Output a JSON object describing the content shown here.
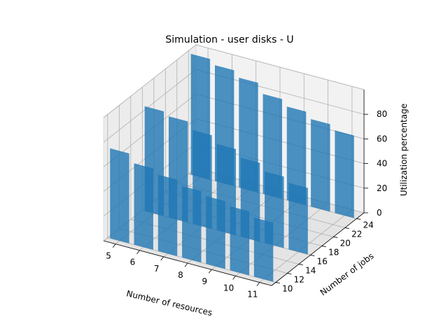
{
  "chart_data": {
    "type": "bar3d",
    "title": "Simulation - user disks - U",
    "xlabel": "Number of resources",
    "ylabel": "Number of jobs",
    "zlabel": "Utilization percentage",
    "x_ticks": [
      "5",
      "6",
      "7",
      "8",
      "9",
      "10",
      "11"
    ],
    "y_ticks": [
      "10",
      "12",
      "14",
      "16",
      "18",
      "20",
      "22",
      "24"
    ],
    "z_ticks": [
      "0",
      "20",
      "40",
      "60",
      "80"
    ],
    "xlim": [
      4.5,
      11.5
    ],
    "ylim": [
      9.3,
      25.3
    ],
    "zlim": [
      0,
      100
    ],
    "grid": true,
    "bars": [
      {
        "x": 5,
        "y": 10,
        "z": 73
      },
      {
        "x": 6,
        "y": 10,
        "z": 66
      },
      {
        "x": 7,
        "y": 10,
        "z": 62
      },
      {
        "x": 8,
        "y": 10,
        "z": 58
      },
      {
        "x": 9,
        "y": 10,
        "z": 55
      },
      {
        "x": 10,
        "y": 10,
        "z": 52
      },
      {
        "x": 11,
        "y": 10,
        "z": 48
      },
      {
        "x": 5,
        "y": 16,
        "z": 85
      },
      {
        "x": 6,
        "y": 16,
        "z": 82
      },
      {
        "x": 7,
        "y": 16,
        "z": 76
      },
      {
        "x": 8,
        "y": 16,
        "z": 70
      },
      {
        "x": 9,
        "y": 16,
        "z": 64
      },
      {
        "x": 10,
        "y": 16,
        "z": 58
      },
      {
        "x": 11,
        "y": 16,
        "z": 54
      },
      {
        "x": 5,
        "y": 24,
        "z": 98
      },
      {
        "x": 6,
        "y": 24,
        "z": 94
      },
      {
        "x": 7,
        "y": 24,
        "z": 89
      },
      {
        "x": 8,
        "y": 24,
        "z": 81
      },
      {
        "x": 9,
        "y": 24,
        "z": 76
      },
      {
        "x": 10,
        "y": 24,
        "z": 71
      },
      {
        "x": 11,
        "y": 24,
        "z": 67
      }
    ]
  }
}
